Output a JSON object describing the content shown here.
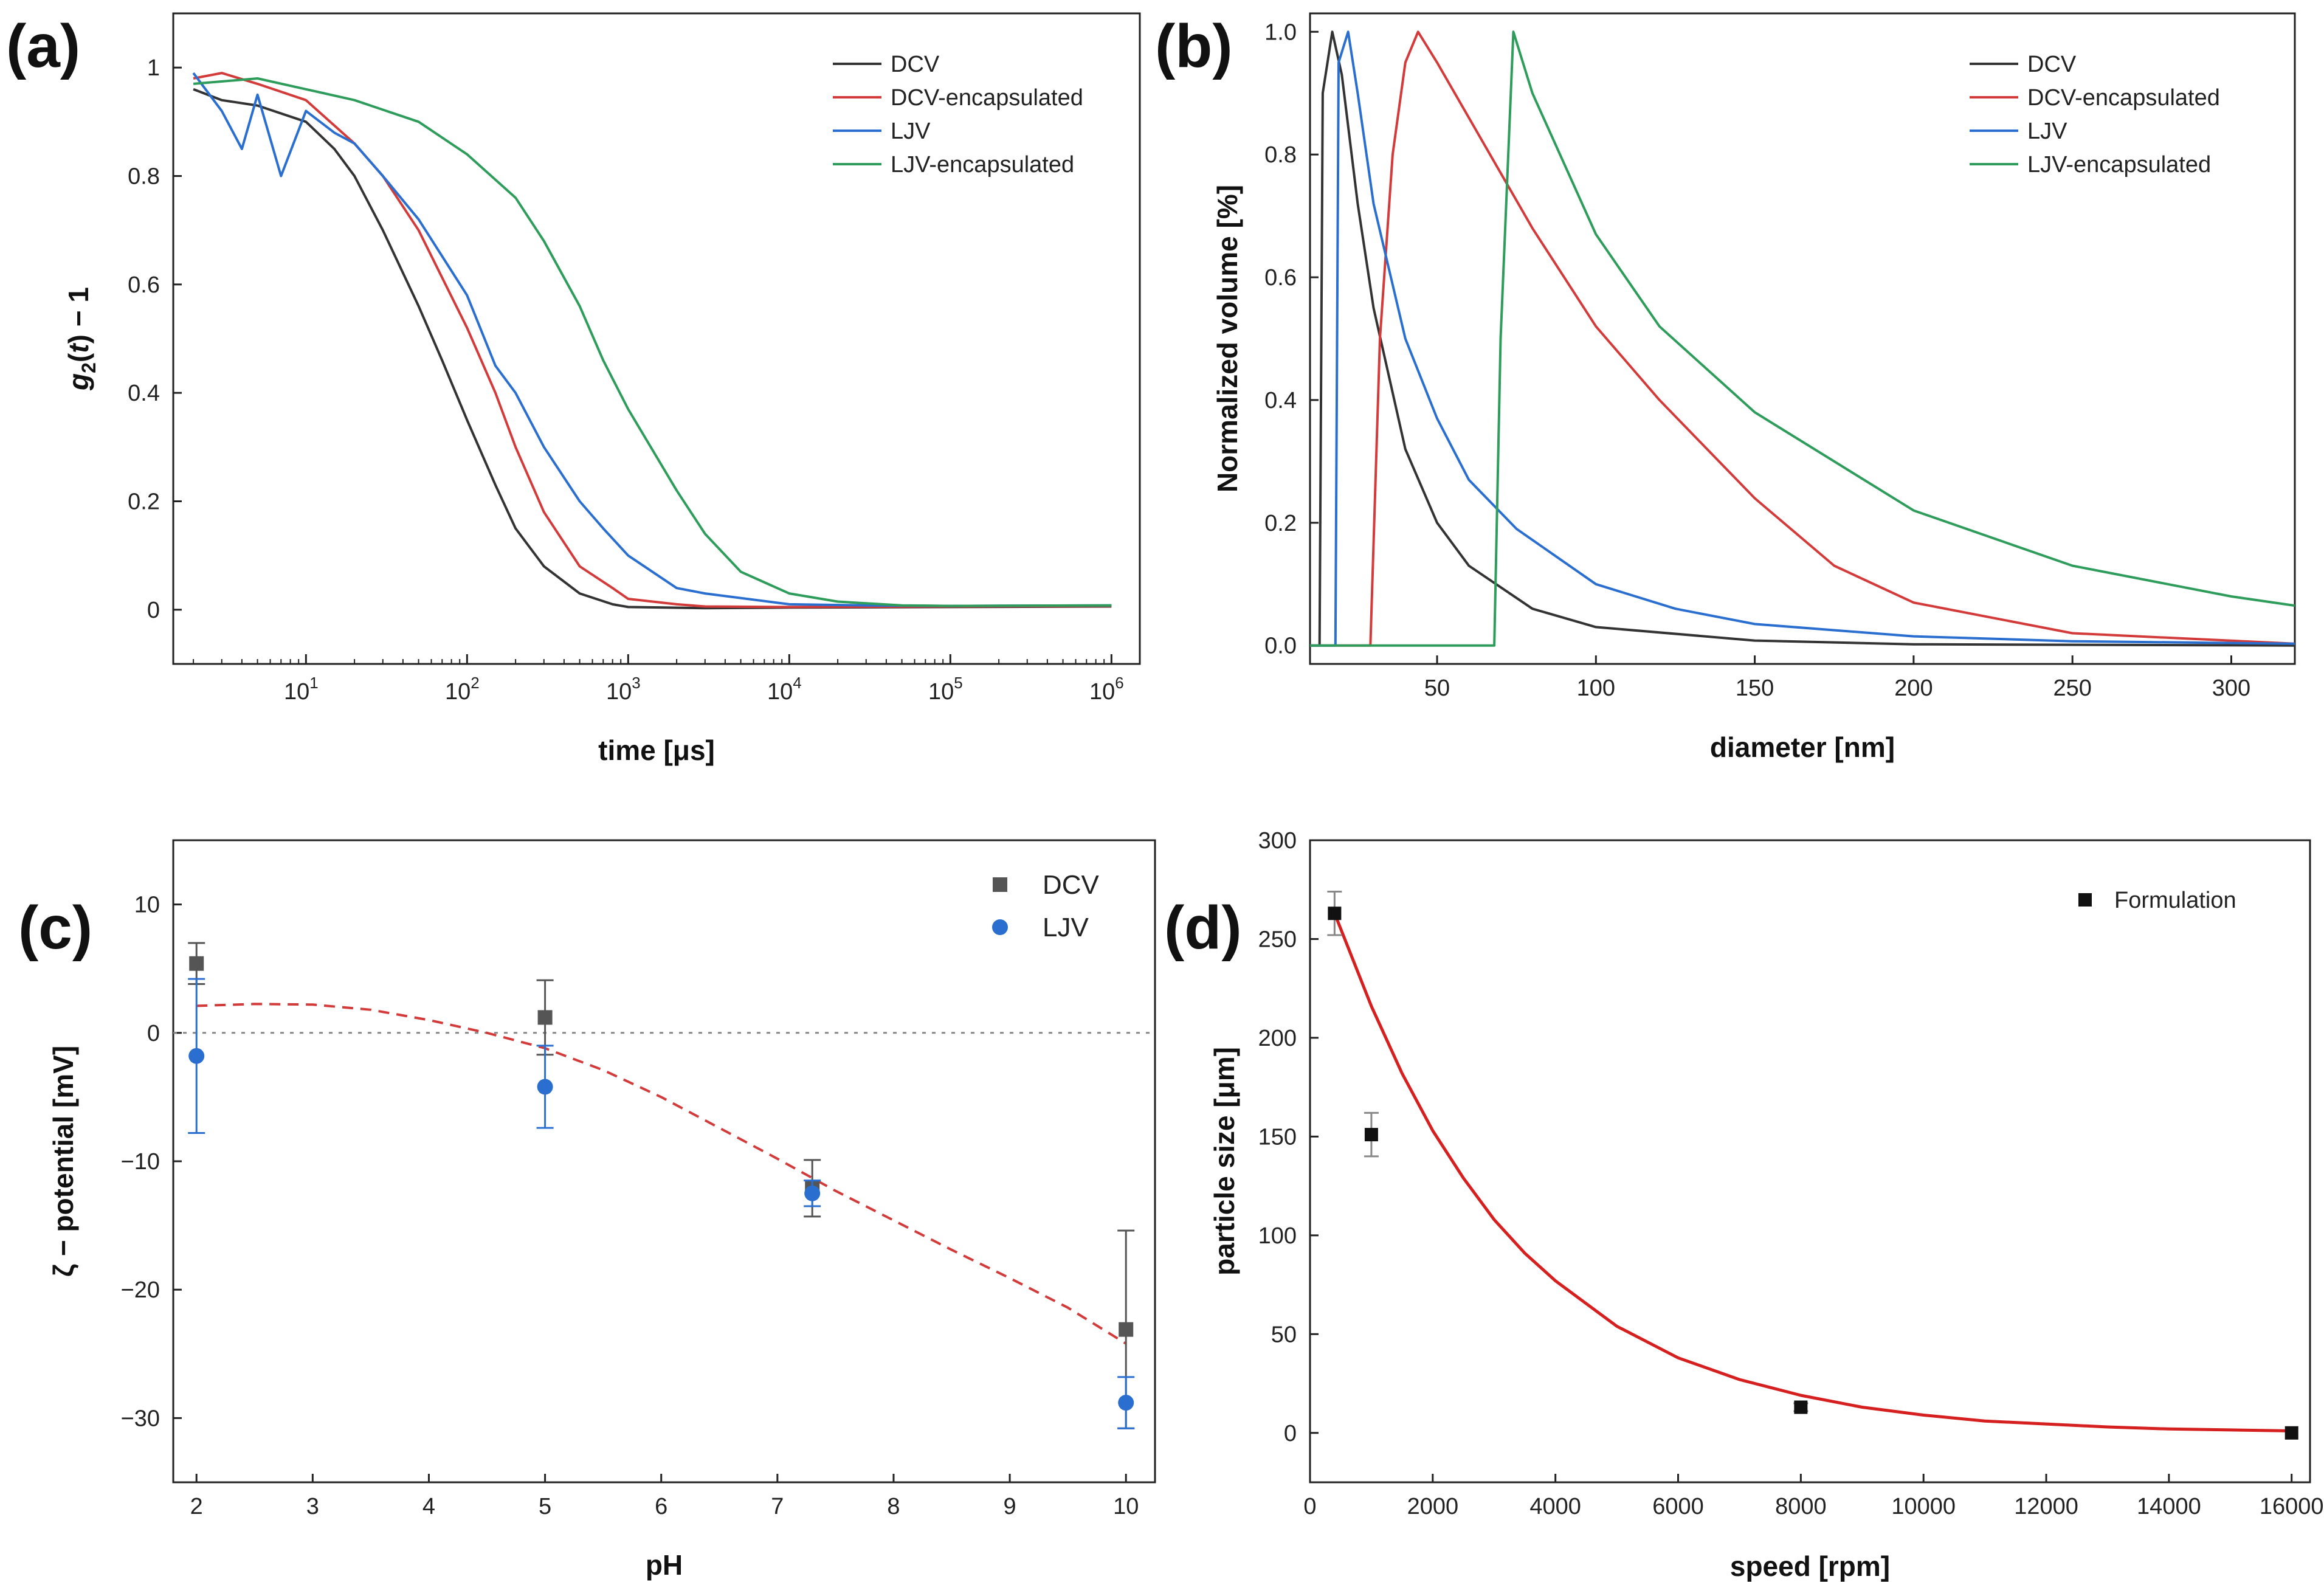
{
  "chart_data": [
    {
      "id": "a",
      "panel_label": "(a)",
      "type": "line",
      "xlabel": "time [μs]",
      "ylabel_parts": [
        "g",
        "2",
        "(",
        "t",
        ") − 1"
      ],
      "x_scale": "log",
      "xlim": [
        1.5,
        1500000
      ],
      "ylim": [
        -0.1,
        1.1
      ],
      "x_ticks": [
        {
          "base": "10",
          "exp": "1",
          "value": 10
        },
        {
          "base": "10",
          "exp": "2",
          "value": 100
        },
        {
          "base": "10",
          "exp": "3",
          "value": 1000
        },
        {
          "base": "10",
          "exp": "4",
          "value": 10000
        },
        {
          "base": "10",
          "exp": "5",
          "value": 100000
        },
        {
          "base": "10",
          "exp": "6",
          "value": 1000000
        }
      ],
      "y_ticks": [
        0,
        0.2,
        0.4,
        0.6,
        0.8,
        1
      ],
      "y_tick_labels": [
        "0",
        "0.2",
        "0.4",
        "0.6",
        "0.8",
        "1"
      ],
      "legend_position": "top-right",
      "series": [
        {
          "name": "DCV",
          "color": "#333333",
          "points": [
            [
              2,
              0.96
            ],
            [
              3,
              0.94
            ],
            [
              5,
              0.93
            ],
            [
              10,
              0.9
            ],
            [
              15,
              0.85
            ],
            [
              20,
              0.8
            ],
            [
              30,
              0.7
            ],
            [
              50,
              0.56
            ],
            [
              70,
              0.46
            ],
            [
              100,
              0.35
            ],
            [
              150,
              0.23
            ],
            [
              200,
              0.15
            ],
            [
              300,
              0.08
            ],
            [
              500,
              0.03
            ],
            [
              800,
              0.01
            ],
            [
              1000,
              0.005
            ],
            [
              3000,
              0.003
            ],
            [
              10000,
              0.004
            ],
            [
              100000,
              0.005
            ],
            [
              1000000,
              0.006
            ]
          ]
        },
        {
          "name": "DCV-encapsulated",
          "color": "#d33b3b",
          "points": [
            [
              2,
              0.98
            ],
            [
              3,
              0.99
            ],
            [
              5,
              0.97
            ],
            [
              10,
              0.94
            ],
            [
              20,
              0.86
            ],
            [
              30,
              0.8
            ],
            [
              50,
              0.7
            ],
            [
              100,
              0.52
            ],
            [
              150,
              0.4
            ],
            [
              200,
              0.3
            ],
            [
              300,
              0.18
            ],
            [
              500,
              0.08
            ],
            [
              800,
              0.04
            ],
            [
              1000,
              0.02
            ],
            [
              2000,
              0.01
            ],
            [
              3000,
              0.006
            ],
            [
              10000,
              0.005
            ],
            [
              100000,
              0.006
            ],
            [
              1000000,
              0.007
            ]
          ]
        },
        {
          "name": "LJV",
          "color": "#2a6fcf",
          "points": [
            [
              2,
              0.99
            ],
            [
              3,
              0.92
            ],
            [
              4,
              0.85
            ],
            [
              5,
              0.95
            ],
            [
              7,
              0.8
            ],
            [
              10,
              0.92
            ],
            [
              15,
              0.88
            ],
            [
              20,
              0.86
            ],
            [
              30,
              0.8
            ],
            [
              50,
              0.72
            ],
            [
              100,
              0.58
            ],
            [
              150,
              0.45
            ],
            [
              200,
              0.4
            ],
            [
              300,
              0.3
            ],
            [
              500,
              0.2
            ],
            [
              700,
              0.15
            ],
            [
              1000,
              0.1
            ],
            [
              2000,
              0.04
            ],
            [
              3000,
              0.03
            ],
            [
              10000,
              0.01
            ],
            [
              30000,
              0.008
            ],
            [
              100000,
              0.007
            ],
            [
              1000000,
              0.008
            ]
          ]
        },
        {
          "name": "LJV-encapsulated",
          "color": "#2e9c5a",
          "points": [
            [
              2,
              0.97
            ],
            [
              5,
              0.98
            ],
            [
              10,
              0.96
            ],
            [
              20,
              0.94
            ],
            [
              50,
              0.9
            ],
            [
              100,
              0.84
            ],
            [
              200,
              0.76
            ],
            [
              300,
              0.68
            ],
            [
              500,
              0.56
            ],
            [
              700,
              0.46
            ],
            [
              1000,
              0.37
            ],
            [
              2000,
              0.22
            ],
            [
              3000,
              0.14
            ],
            [
              5000,
              0.07
            ],
            [
              10000,
              0.03
            ],
            [
              20000,
              0.015
            ],
            [
              50000,
              0.008
            ],
            [
              100000,
              0.007
            ],
            [
              1000000,
              0.008
            ]
          ]
        }
      ]
    },
    {
      "id": "b",
      "panel_label": "(b)",
      "type": "line",
      "xlabel": "diameter [nm]",
      "ylabel": "Normalized volume [%]",
      "xlim": [
        10,
        320
      ],
      "ylim": [
        -0.03,
        1.03
      ],
      "x_ticks": [
        50,
        100,
        150,
        200,
        250,
        300
      ],
      "x_tick_labels": [
        "50",
        "100",
        "150",
        "200",
        "250",
        "300"
      ],
      "y_ticks": [
        0,
        0.2,
        0.4,
        0.6,
        0.8,
        1
      ],
      "y_tick_labels": [
        "0.0",
        "0.2",
        "0.4",
        "0.6",
        "0.8",
        "1.0"
      ],
      "legend_position": "top-right",
      "series": [
        {
          "name": "DCV",
          "color": "#333333",
          "points": [
            [
              10,
              0.0
            ],
            [
              13,
              0.0
            ],
            [
              14,
              0.9
            ],
            [
              17,
              1.0
            ],
            [
              20,
              0.93
            ],
            [
              25,
              0.72
            ],
            [
              30,
              0.55
            ],
            [
              40,
              0.32
            ],
            [
              50,
              0.2
            ],
            [
              60,
              0.13
            ],
            [
              80,
              0.06
            ],
            [
              100,
              0.03
            ],
            [
              150,
              0.008
            ],
            [
              200,
              0.002
            ],
            [
              320,
              0.0
            ]
          ]
        },
        {
          "name": "DCV-encapsulated",
          "color": "#d33b3b",
          "points": [
            [
              10,
              0.0
            ],
            [
              29,
              0.0
            ],
            [
              32,
              0.5
            ],
            [
              36,
              0.8
            ],
            [
              40,
              0.95
            ],
            [
              44,
              1.0
            ],
            [
              50,
              0.95
            ],
            [
              60,
              0.86
            ],
            [
              80,
              0.68
            ],
            [
              100,
              0.52
            ],
            [
              120,
              0.4
            ],
            [
              150,
              0.24
            ],
            [
              175,
              0.13
            ],
            [
              200,
              0.07
            ],
            [
              250,
              0.02
            ],
            [
              320,
              0.003
            ]
          ]
        },
        {
          "name": "LJV",
          "color": "#2a6fcf",
          "points": [
            [
              10,
              0.0
            ],
            [
              18,
              0.0
            ],
            [
              19,
              0.95
            ],
            [
              22,
              1.0
            ],
            [
              25,
              0.9
            ],
            [
              30,
              0.72
            ],
            [
              40,
              0.5
            ],
            [
              50,
              0.37
            ],
            [
              60,
              0.27
            ],
            [
              75,
              0.19
            ],
            [
              100,
              0.1
            ],
            [
              125,
              0.06
            ],
            [
              150,
              0.035
            ],
            [
              200,
              0.015
            ],
            [
              250,
              0.007
            ],
            [
              320,
              0.003
            ]
          ]
        },
        {
          "name": "LJV-encapsulated",
          "color": "#2e9c5a",
          "points": [
            [
              10,
              0.0
            ],
            [
              68,
              0.0
            ],
            [
              70,
              0.5
            ],
            [
              74,
              1.0
            ],
            [
              80,
              0.9
            ],
            [
              100,
              0.67
            ],
            [
              120,
              0.52
            ],
            [
              150,
              0.38
            ],
            [
              200,
              0.22
            ],
            [
              250,
              0.13
            ],
            [
              300,
              0.08
            ],
            [
              320,
              0.065
            ]
          ]
        }
      ]
    },
    {
      "id": "c",
      "panel_label": "(c)",
      "type": "scatter",
      "xlabel": "pH",
      "ylabel": "ζ − potential [mV]",
      "xlim": [
        1.8,
        10.25
      ],
      "ylim": [
        -35,
        15
      ],
      "x_ticks": [
        2,
        3,
        4,
        5,
        6,
        7,
        8,
        9,
        10
      ],
      "x_tick_labels": [
        "2",
        "3",
        "4",
        "5",
        "6",
        "7",
        "8",
        "9",
        "10"
      ],
      "y_ticks": [
        -30,
        -20,
        -10,
        0,
        10
      ],
      "y_tick_labels": [
        "−30",
        "−20",
        "−10",
        "0",
        "10"
      ],
      "legend_position": "top-right",
      "zero_line": 0,
      "series": [
        {
          "name": "DCV",
          "marker": "square",
          "color": "#555555",
          "points": [
            [
              2,
              5.4,
              1.6
            ],
            [
              5,
              1.2,
              2.9
            ],
            [
              7.3,
              -12.1,
              2.2
            ],
            [
              10,
              -23.1,
              7.7
            ]
          ]
        },
        {
          "name": "LJV",
          "marker": "circle",
          "color": "#2a6fcf",
          "points": [
            [
              2,
              -1.8,
              6.0
            ],
            [
              5,
              -4.2,
              3.2
            ],
            [
              7.3,
              -12.5,
              1.0
            ],
            [
              10,
              -28.8,
              2.0
            ]
          ]
        }
      ],
      "fit": {
        "color": "#d33b3b",
        "points": [
          [
            2,
            2.1
          ],
          [
            2.5,
            2.25
          ],
          [
            3,
            2.2
          ],
          [
            3.5,
            1.8
          ],
          [
            4,
            1.0
          ],
          [
            4.5,
            0.0
          ],
          [
            5,
            -1.2
          ],
          [
            5.5,
            -2.9
          ],
          [
            6,
            -5.0
          ],
          [
            6.5,
            -7.4
          ],
          [
            7,
            -9.8
          ],
          [
            7.5,
            -12.3
          ],
          [
            8,
            -14.6
          ],
          [
            8.5,
            -16.9
          ],
          [
            9,
            -19.1
          ],
          [
            9.5,
            -21.4
          ],
          [
            10,
            -24.2
          ]
        ]
      }
    },
    {
      "id": "d",
      "panel_label": "(d)",
      "type": "scatter",
      "xlabel": "speed [rpm]",
      "ylabel": "particle size [μm]",
      "xlim": [
        0,
        16300
      ],
      "ylim": [
        -25,
        300
      ],
      "x_ticks": [
        0,
        2000,
        4000,
        6000,
        8000,
        10000,
        12000,
        14000,
        16000
      ],
      "x_tick_labels": [
        "0",
        "2000",
        "4000",
        "6000",
        "8000",
        "10000",
        "12000",
        "14000",
        "16000"
      ],
      "y_ticks": [
        0,
        50,
        100,
        150,
        200,
        250,
        300
      ],
      "y_tick_labels": [
        "0",
        "50",
        "100",
        "150",
        "200",
        "250",
        "300"
      ],
      "legend_position": "top-right",
      "series": [
        {
          "name": "Formulation",
          "marker": "square",
          "color": "#111111",
          "points": [
            [
              400,
              263,
              11
            ],
            [
              1000,
              151,
              11
            ],
            [
              8000,
              13,
              2
            ],
            [
              16000,
              0,
              0
            ]
          ]
        }
      ],
      "fit": {
        "color": "#d61f1f",
        "model": "exponential decay",
        "points": [
          [
            400,
            263
          ],
          [
            1000,
            216
          ],
          [
            1500,
            182
          ],
          [
            2000,
            153
          ],
          [
            2500,
            129
          ],
          [
            3000,
            108
          ],
          [
            3500,
            91
          ],
          [
            4000,
            77
          ],
          [
            5000,
            54
          ],
          [
            6000,
            38
          ],
          [
            7000,
            27
          ],
          [
            8000,
            19
          ],
          [
            9000,
            13
          ],
          [
            10000,
            9
          ],
          [
            11000,
            6
          ],
          [
            12000,
            4.5
          ],
          [
            13000,
            3
          ],
          [
            14000,
            2
          ],
          [
            15000,
            1.5
          ],
          [
            16000,
            1
          ]
        ]
      }
    }
  ]
}
